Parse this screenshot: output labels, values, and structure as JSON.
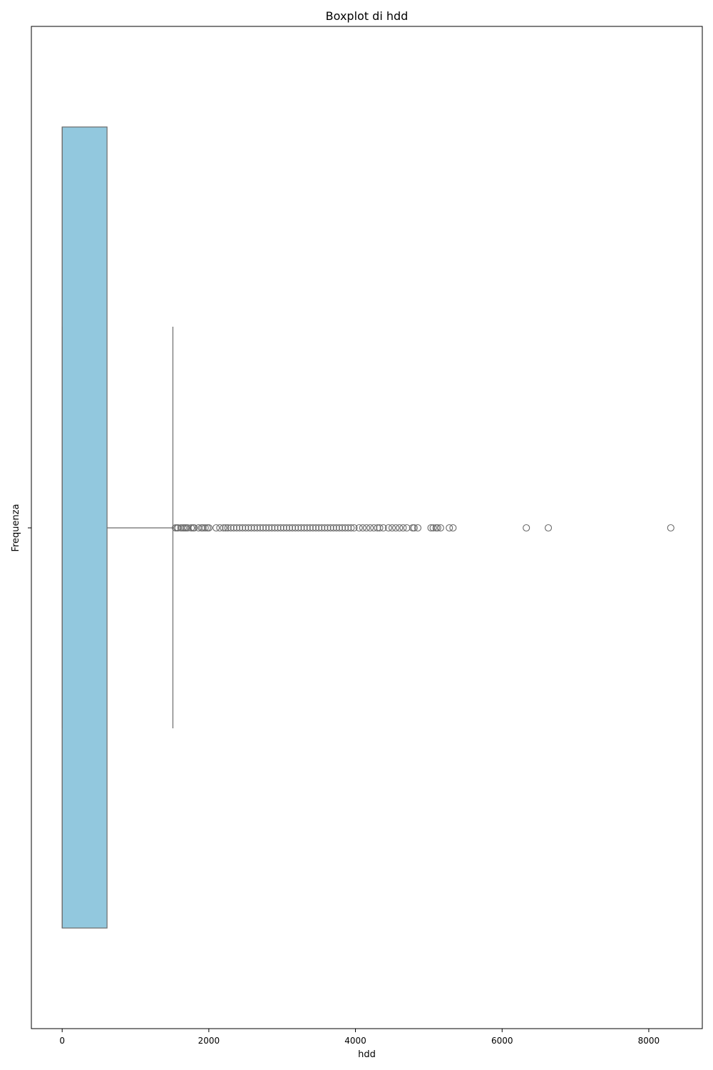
{
  "chart_data": {
    "type": "boxplot",
    "title": "Boxplot di hdd",
    "xlabel": "hdd",
    "ylabel": "Frequenza",
    "xlim": [
      -420,
      8730
    ],
    "x_ticks": [
      0,
      2000,
      4000,
      6000,
      8000
    ],
    "x_tick_labels": [
      "0",
      "2000",
      "4000",
      "6000",
      "8000"
    ],
    "orientation": "horizontal",
    "grid": false,
    "colors": {
      "box_fill": "#92c8de",
      "box_stroke": "#6b6b6b",
      "outlier_stroke": "#6b6b6b"
    },
    "box": {
      "whisker_low": 0,
      "q1": 0,
      "median": 0,
      "q3": 612,
      "whisker_high": 1510
    },
    "outliers": [
      1545,
      1565,
      1580,
      1620,
      1650,
      1670,
      1690,
      1710,
      1760,
      1785,
      1800,
      1860,
      1900,
      1920,
      1950,
      1980,
      2000,
      2100,
      2150,
      2200,
      2230,
      2260,
      2300,
      2340,
      2380,
      2420,
      2460,
      2500,
      2540,
      2580,
      2620,
      2660,
      2700,
      2740,
      2780,
      2820,
      2860,
      2900,
      2940,
      2980,
      3020,
      3060,
      3100,
      3140,
      3180,
      3220,
      3260,
      3300,
      3340,
      3380,
      3420,
      3460,
      3500,
      3540,
      3580,
      3620,
      3660,
      3700,
      3740,
      3780,
      3820,
      3860,
      3900,
      3940,
      3980,
      4050,
      4100,
      4150,
      4200,
      4250,
      4300,
      4330,
      4380,
      4450,
      4500,
      4550,
      4600,
      4650,
      4700,
      4780,
      4800,
      4850,
      5030,
      5060,
      5100,
      5120,
      5160,
      5280,
      5330,
      6330,
      6630,
      8300
    ]
  }
}
